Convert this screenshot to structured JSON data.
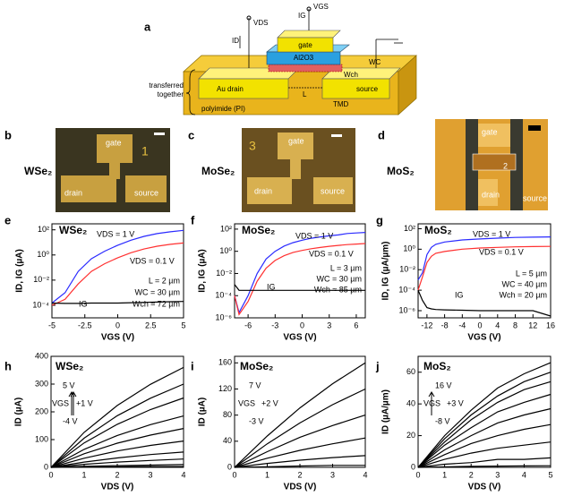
{
  "panel_letters": [
    "a",
    "b",
    "c",
    "d",
    "e",
    "f",
    "g",
    "h",
    "i",
    "j"
  ],
  "schematic": {
    "labels": [
      "VDS",
      "ID",
      "IG",
      "VGS",
      "gate",
      "Al2O3",
      "WC",
      "Wch",
      "Au drain",
      "source",
      "L",
      "TMD",
      "transferred",
      "together",
      "polyimide (PI)"
    ]
  },
  "micrographs": [
    {
      "material": "WSe₂",
      "labels": [
        "gate",
        "1",
        "drain",
        "source"
      ]
    },
    {
      "material": "MoSe₂",
      "labels": [
        "3",
        "gate",
        "drain",
        "source"
      ]
    },
    {
      "material": "MoS₂",
      "labels": [
        "gate",
        "2",
        "drain",
        "source"
      ]
    }
  ],
  "chart_data": [
    {
      "type": "line",
      "log_y": true,
      "xlabel": "VGS (V)",
      "ylabel": "ID, IG (µA)",
      "annotations": [
        "WSe₂",
        "L = 2 µm",
        "WC = 30 µm",
        "Wch ≈ 72 µm"
      ],
      "x": [
        -5,
        -4,
        -3,
        -2,
        -1,
        0,
        1,
        2,
        3,
        4,
        5
      ],
      "xlim": [
        -5,
        5
      ],
      "xticks": [
        -5,
        -2.5,
        0,
        2.5,
        5
      ],
      "ylim": [
        1e-05,
        300
      ],
      "yticks": [
        {
          "value": 0.0001,
          "label": "10⁻⁴"
        },
        {
          "value": 0.01,
          "label": "10⁻²"
        },
        {
          "value": 1,
          "label": "10⁰"
        },
        {
          "value": 100,
          "label": "10²"
        }
      ],
      "series": [
        {
          "name": "VDS = 1 V",
          "color": "#2a2aff",
          "values": [
            0.00015,
            0.001,
            0.05,
            0.5,
            2,
            6,
            15,
            30,
            50,
            70,
            90
          ]
        },
        {
          "name": "VDS = 0.1 V",
          "color": "#ff3030",
          "values": [
            0.0001,
            0.0003,
            0.005,
            0.05,
            0.2,
            0.6,
            1.5,
            3,
            5,
            7,
            9
          ]
        },
        {
          "name": "IG",
          "color": "#000000",
          "values": [
            0.00015,
            0.00014,
            0.00014,
            0.00015,
            0.00015,
            0.00015,
            0.00016,
            0.00017,
            0.00018,
            0.00019,
            0.0002
          ]
        }
      ]
    },
    {
      "type": "line",
      "log_y": true,
      "xlabel": "VGS (V)",
      "ylabel": "ID, IG (µA)",
      "annotations": [
        "MoSe₂",
        "L = 3 µm",
        "WC = 30 µm",
        "Wch ≈ 85 µm"
      ],
      "x": [
        -7.5,
        -7,
        -6,
        -5,
        -4,
        -3,
        -2,
        -1,
        0,
        1,
        2,
        3,
        4,
        5,
        6,
        7
      ],
      "xlim": [
        -7.5,
        7
      ],
      "xticks": [
        -6,
        -3,
        0,
        3,
        6
      ],
      "ylim": [
        1e-06,
        300
      ],
      "yticks": [
        {
          "value": 1e-06,
          "label": "10⁻⁶"
        },
        {
          "value": 0.0001,
          "label": "10⁻⁴"
        },
        {
          "value": 0.01,
          "label": "10⁻²"
        },
        {
          "value": 1,
          "label": "10⁰"
        },
        {
          "value": 100,
          "label": "10²"
        }
      ],
      "series": [
        {
          "name": "VDS = 1 V",
          "color": "#2a2aff",
          "values": [
            0.0001,
            3e-06,
            0.0001,
            0.01,
            0.2,
            1,
            3,
            6,
            10,
            15,
            20,
            25,
            30,
            40,
            45,
            50
          ]
        },
        {
          "name": "VDS = 0.1 V",
          "color": "#ff3030",
          "values": [
            0.0001,
            2e-06,
            3e-05,
            0.002,
            0.03,
            0.15,
            0.4,
            0.8,
            1.2,
            1.7,
            2.2,
            2.8,
            3.4,
            4,
            4.5,
            5
          ]
        },
        {
          "name": "IG",
          "color": "#000000",
          "values": [
            0.001,
            0.0003,
            0.0003,
            0.0003,
            0.0003,
            0.0003,
            0.0003,
            0.0003,
            0.0003,
            0.0003,
            0.0003,
            0.0003,
            0.0003,
            0.0003,
            0.0003,
            0.0003
          ]
        }
      ]
    },
    {
      "type": "line",
      "log_y": true,
      "xlabel": "VGS (V)",
      "ylabel": "ID, IG (µA/µm)",
      "annotations": [
        "MoS₂",
        "L = 5 µm",
        "WC = 40 µm",
        "Wch = 20 µm"
      ],
      "x": [
        -14,
        -13,
        -12,
        -11,
        -10,
        -8,
        -4,
        0,
        4,
        8,
        12,
        16
      ],
      "xlim": [
        -14,
        16
      ],
      "xticks": [
        -12,
        -8,
        -4,
        0,
        4,
        8,
        12,
        16
      ],
      "ylim": [
        2e-07,
        300
      ],
      "yticks": [
        {
          "value": 1e-06,
          "label": "10⁻⁶"
        },
        {
          "value": 0.0001,
          "label": "10⁻⁴"
        },
        {
          "value": 0.01,
          "label": "10⁻²"
        },
        {
          "value": 1,
          "label": "10⁰"
        },
        {
          "value": 100,
          "label": "10²"
        }
      ],
      "series": [
        {
          "name": "VDS = 1 V",
          "color": "#2a2aff",
          "values": [
            0.001,
            0.005,
            0.3,
            1.5,
            3,
            5,
            8,
            10,
            12,
            14,
            15,
            16
          ]
        },
        {
          "name": "VDS = 0.1 V",
          "color": "#ff3030",
          "values": [
            0.0001,
            0.002,
            0.05,
            0.2,
            0.4,
            0.6,
            1,
            1.3,
            1.5,
            1.7,
            1.8,
            1.9
          ]
        },
        {
          "name": "IG",
          "color": "#000000",
          "values": [
            0.0001,
            1e-05,
            2e-06,
            1.5e-06,
            1.3e-06,
            1.2e-06,
            1.1e-06,
            1e-06,
            1e-06,
            1e-06,
            1e-06,
            3e-07
          ]
        }
      ]
    },
    {
      "type": "line",
      "log_y": false,
      "xlabel": "VDS (V)",
      "ylabel": "ID (µA)",
      "annotations": [
        "WSe₂",
        "5 V",
        "VGS",
        "+1 V",
        "-4 V"
      ],
      "x": [
        0,
        1,
        2,
        3,
        4
      ],
      "xlim": [
        0,
        4
      ],
      "xticks": [
        0,
        1,
        2,
        3,
        4
      ],
      "ylim": [
        0,
        400
      ],
      "yticks": [
        0,
        100,
        200,
        300,
        400
      ],
      "series": [
        {
          "color": "#000000",
          "values": [
            0,
            126,
            223,
            299,
            360
          ]
        },
        {
          "color": "#000000",
          "values": [
            0,
            105,
            186,
            249,
            300
          ]
        },
        {
          "color": "#000000",
          "values": [
            0,
            88,
            155,
            208,
            250
          ]
        },
        {
          "color": "#000000",
          "values": [
            0,
            65,
            115,
            154,
            185
          ]
        },
        {
          "color": "#000000",
          "values": [
            0,
            49,
            87,
            116,
            140
          ]
        },
        {
          "color": "#000000",
          "values": [
            0,
            33,
            59,
            79,
            95
          ]
        },
        {
          "color": "#000000",
          "values": [
            0,
            19,
            34,
            46,
            55
          ]
        },
        {
          "color": "#000000",
          "values": [
            0,
            11,
            19,
            25,
            30
          ]
        },
        {
          "color": "#000000",
          "values": [
            0,
            4,
            6,
            8,
            10
          ]
        },
        {
          "color": "#000000",
          "values": [
            0,
            1,
            2,
            3,
            3
          ]
        }
      ]
    },
    {
      "type": "line",
      "log_y": false,
      "xlabel": "VDS (V)",
      "ylabel": "ID (µA)",
      "annotations": [
        "MoSe₂",
        "7 V",
        "VGS",
        "+2 V",
        "-3 V"
      ],
      "x": [
        0,
        1,
        2,
        3,
        4
      ],
      "xlim": [
        0,
        4
      ],
      "xticks": [
        0,
        1,
        2,
        3,
        4
      ],
      "ylim": [
        0,
        170
      ],
      "yticks": [
        0,
        40,
        80,
        120,
        160
      ],
      "series": [
        {
          "color": "#000000",
          "values": [
            0,
            48,
            91,
            128,
            160
          ]
        },
        {
          "color": "#000000",
          "values": [
            0,
            36,
            68,
            96,
            120
          ]
        },
        {
          "color": "#000000",
          "values": [
            0,
            24,
            46,
            64,
            80
          ]
        },
        {
          "color": "#000000",
          "values": [
            0,
            14,
            26,
            36,
            45
          ]
        },
        {
          "color": "#000000",
          "values": [
            0,
            6,
            11,
            15,
            18
          ]
        },
        {
          "color": "#000000",
          "values": [
            0,
            1,
            2,
            3,
            3
          ]
        }
      ]
    },
    {
      "type": "line",
      "log_y": false,
      "xlabel": "VDS (V)",
      "ylabel": "ID (µA/µm)",
      "annotations": [
        "MoS₂",
        "16 V",
        "VGS",
        "+3 V",
        "-8 V"
      ],
      "x": [
        0,
        1,
        2,
        3,
        4,
        5
      ],
      "xlim": [
        0,
        5
      ],
      "xticks": [
        0,
        1,
        2,
        3,
        4,
        5
      ],
      "ylim": [
        0,
        70
      ],
      "yticks": [
        0,
        20,
        40,
        60
      ],
      "series": [
        {
          "color": "#000000",
          "values": [
            0,
            20,
            36,
            50,
            59,
            66
          ]
        },
        {
          "color": "#000000",
          "values": [
            0,
            18,
            33,
            45,
            54,
            60
          ]
        },
        {
          "color": "#000000",
          "values": [
            0,
            16,
            30,
            41,
            49,
            54
          ]
        },
        {
          "color": "#000000",
          "values": [
            0,
            14,
            25,
            35,
            41,
            46
          ]
        },
        {
          "color": "#000000",
          "values": [
            0,
            11,
            20,
            28,
            33,
            37
          ]
        },
        {
          "color": "#000000",
          "values": [
            0,
            8,
            15,
            20,
            24,
            27
          ]
        },
        {
          "color": "#000000",
          "values": [
            0,
            5,
            9,
            12,
            14,
            16
          ]
        },
        {
          "color": "#000000",
          "values": [
            0,
            2,
            3,
            5,
            5,
            6
          ]
        },
        {
          "color": "#000000",
          "values": [
            0,
            0.3,
            0.6,
            0.8,
            0.9,
            1
          ]
        }
      ]
    }
  ]
}
